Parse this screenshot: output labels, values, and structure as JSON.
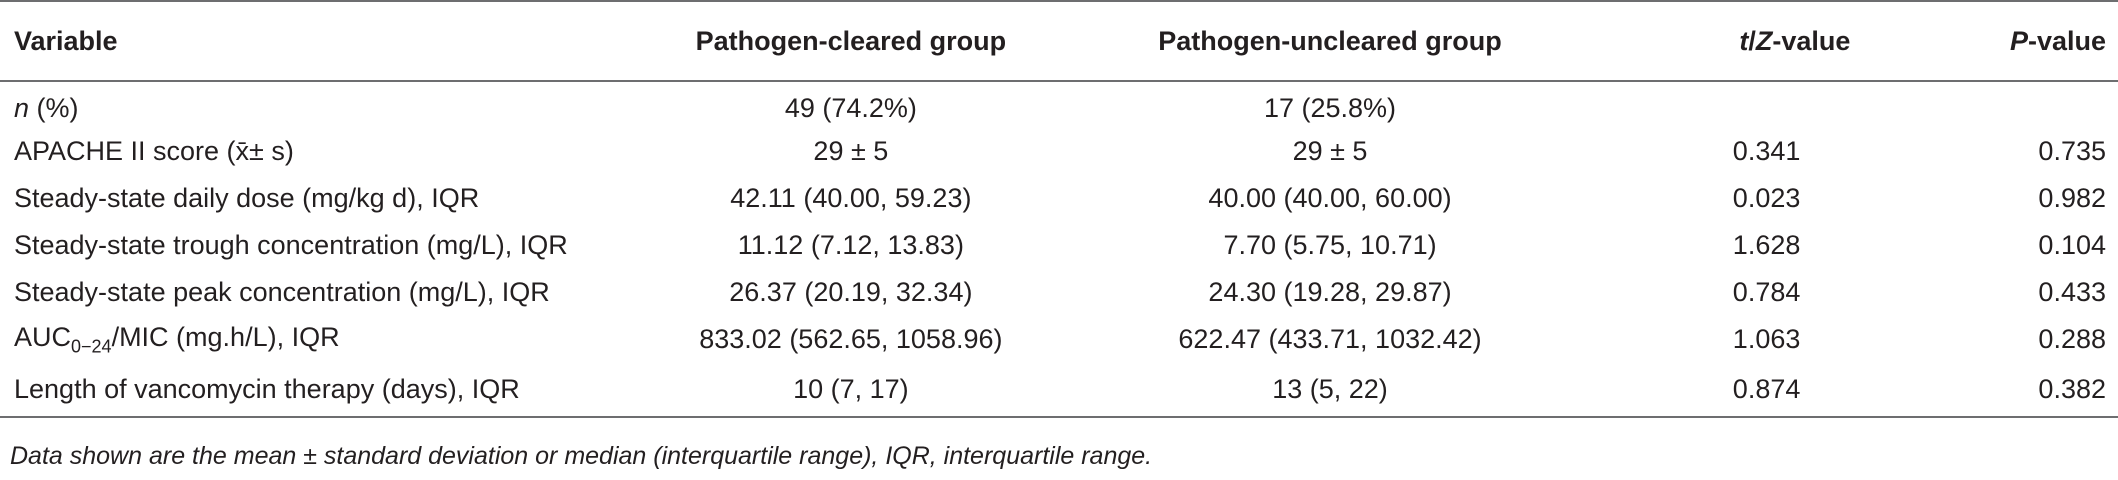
{
  "table": {
    "headers": {
      "variable": "Variable",
      "cleared": "Pathogen-cleared group",
      "uncleared": "Pathogen-uncleared group",
      "tz_t": "t",
      "tz_slash": "/",
      "tz_z": "Z",
      "tz_suffix": "-value",
      "p_p": "P",
      "p_suffix": "-value"
    },
    "n_row": {
      "label_italic": "n",
      "label_rest": " (%)",
      "cleared": "49 (74.2%)",
      "uncleared": "17 (25.8%)",
      "tz": "",
      "p": ""
    },
    "auc_row": {
      "label_main": "AUC",
      "label_sub": "0−24",
      "label_rest": "/MIC (mg.h/L), IQR",
      "cleared": "833.02 (562.65, 1058.96)",
      "uncleared": "622.47 (433.71, 1032.42)",
      "tz": "1.063",
      "p": "0.288"
    },
    "rows": [
      {
        "label": "APACHE II score (x̄± s)",
        "cleared": "29 ± 5",
        "uncleared": "29 ± 5",
        "tz": "0.341",
        "p": "0.735"
      },
      {
        "label": "Steady-state daily dose (mg/kg d), IQR",
        "cleared": "42.11 (40.00, 59.23)",
        "uncleared": "40.00 (40.00, 60.00)",
        "tz": "0.023",
        "p": "0.982"
      },
      {
        "label": "Steady-state trough concentration (mg/L), IQR",
        "cleared": "11.12 (7.12, 13.83)",
        "uncleared": "7.70 (5.75, 10.71)",
        "tz": "1.628",
        "p": "0.104"
      },
      {
        "label": "Steady-state peak concentration (mg/L), IQR",
        "cleared": "26.37 (20.19, 32.34)",
        "uncleared": "24.30 (19.28, 29.87)",
        "tz": "0.784",
        "p": "0.433"
      }
    ],
    "last_row": {
      "label": "Length of vancomycin therapy (days), IQR",
      "cleared": "10 (7, 17)",
      "uncleared": "13 (5, 22)",
      "tz": "0.874",
      "p": "0.382"
    }
  },
  "footnote": "Data shown are the mean ± standard deviation or median (interquartile range), IQR, interquartile range."
}
